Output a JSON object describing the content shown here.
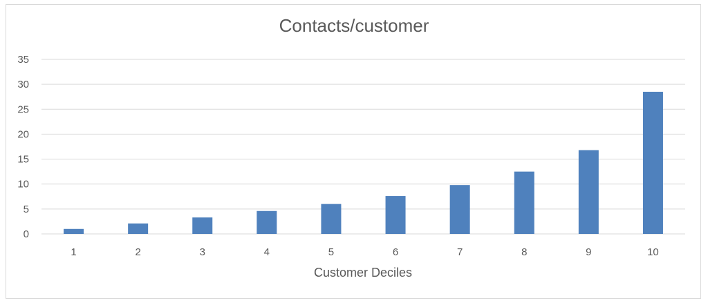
{
  "chart_data": {
    "type": "bar",
    "title": "Contacts/customer",
    "xlabel": "Customer Deciles",
    "ylabel": "",
    "categories": [
      "1",
      "2",
      "3",
      "4",
      "5",
      "6",
      "7",
      "8",
      "9",
      "10"
    ],
    "series": [
      {
        "values": [
          1.0,
          2.1,
          3.3,
          4.6,
          6.0,
          7.6,
          9.8,
          12.5,
          16.8,
          28.5
        ],
        "color": "#4f81bd"
      }
    ],
    "ylim": [
      0,
      35
    ],
    "yticks": [
      0,
      5,
      10,
      15,
      20,
      25,
      30,
      35
    ],
    "grid": true,
    "legend": "none"
  }
}
